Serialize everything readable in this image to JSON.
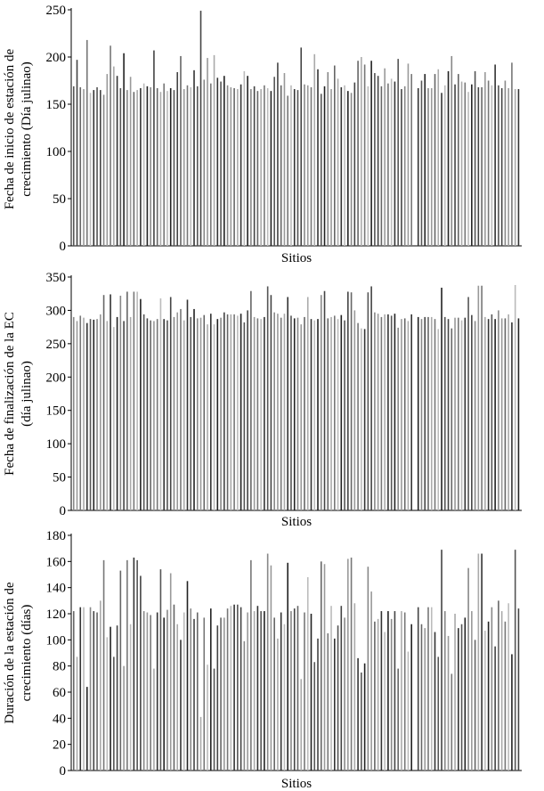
{
  "chart_data": [
    {
      "type": "bar",
      "title": "",
      "xlabel": "Sitios",
      "ylabel": [
        "Fecha de inicio de estación de",
        "crecimiento (Día julinao)"
      ],
      "ylim": [
        0,
        250
      ],
      "yticks": [
        0,
        50,
        100,
        150,
        200,
        250
      ],
      "grid": false,
      "values": [
        169,
        197,
        168,
        166,
        218,
        162,
        165,
        168,
        165,
        160,
        182,
        212,
        190,
        180,
        167,
        204,
        165,
        179,
        163,
        165,
        167,
        172,
        169,
        168,
        207,
        167,
        163,
        172,
        164,
        167,
        165,
        184,
        201,
        166,
        170,
        168,
        186,
        169,
        249,
        176,
        199,
        172,
        202,
        178,
        174,
        180,
        170,
        168,
        167,
        166,
        171,
        185,
        180,
        166,
        169,
        164,
        166,
        170,
        167,
        164,
        179,
        194,
        170,
        183,
        159,
        170,
        166,
        165,
        210,
        171,
        170,
        168,
        203,
        187,
        161,
        169,
        184,
        166,
        191,
        177,
        168,
        170,
        164,
        162,
        173,
        196,
        200,
        192,
        169,
        196,
        183,
        180,
        169,
        188,
        172,
        177,
        174,
        198,
        166,
        169,
        193,
        182,
        null,
        167,
        175,
        182,
        167,
        167,
        182,
        187,
        162,
        170,
        185,
        201,
        171,
        182,
        174,
        173,
        163,
        171,
        185,
        168,
        168,
        184,
        175,
        170,
        192,
        170,
        167,
        175,
        167,
        194,
        166,
        166
      ]
    },
    {
      "type": "bar",
      "title": "",
      "xlabel": "Sitios",
      "ylabel": [
        "Fecha de finalización de la EC",
        "(día julinao)"
      ],
      "ylim": [
        0,
        350
      ],
      "yticks": [
        0,
        50,
        100,
        150,
        200,
        250,
        300,
        350
      ],
      "grid": false,
      "values": [
        290,
        284,
        292,
        289,
        281,
        287,
        286,
        287,
        294,
        323,
        284,
        324,
        275,
        290,
        322,
        284,
        328,
        290,
        328,
        328,
        317,
        294,
        288,
        285,
        284,
        287,
        318,
        287,
        285,
        320,
        290,
        297,
        302,
        285,
        316,
        290,
        302,
        288,
        289,
        293,
        279,
        295,
        279,
        287,
        289,
        297,
        294,
        294,
        294,
        292,
        295,
        282,
        300,
        329,
        290,
        288,
        287,
        290,
        336,
        323,
        297,
        295,
        289,
        295,
        320,
        292,
        288,
        289,
        279,
        290,
        320,
        287,
        285,
        287,
        323,
        329,
        288,
        290,
        292,
        287,
        293,
        285,
        328,
        327,
        300,
        281,
        273,
        272,
        327,
        336,
        297,
        295,
        290,
        294,
        294,
        292,
        295,
        274,
        287,
        288,
        284,
        294,
        null,
        290,
        287,
        290,
        290,
        290,
        287,
        272,
        334,
        290,
        287,
        273,
        289,
        289,
        285,
        289,
        320,
        293,
        284,
        337,
        337,
        290,
        287,
        294,
        287,
        300,
        288,
        288,
        294,
        282,
        338,
        288
      ]
    },
    {
      "type": "bar",
      "title": "",
      "xlabel": "Sitios",
      "ylabel": [
        "Duración de la estación de",
        "crecimiento (días)"
      ],
      "ylim": [
        0,
        180
      ],
      "yticks": [
        0,
        20,
        40,
        60,
        80,
        100,
        120,
        140,
        160,
        180
      ],
      "grid": false,
      "values": [
        122,
        87,
        125,
        125,
        64,
        125,
        122,
        121,
        130,
        161,
        102,
        110,
        87,
        111,
        153,
        80,
        161,
        112,
        163,
        161,
        149,
        122,
        121,
        119,
        78,
        121,
        154,
        117,
        123,
        151,
        127,
        112,
        100,
        121,
        145,
        124,
        116,
        121,
        41,
        117,
        81,
        124,
        78,
        111,
        117,
        117,
        124,
        126,
        127,
        127,
        125,
        99,
        121,
        161,
        122,
        126,
        122,
        122,
        166,
        157,
        117,
        101,
        121,
        112,
        159,
        122,
        124,
        126,
        70,
        121,
        148,
        120,
        83,
        101,
        160,
        158,
        105,
        126,
        101,
        111,
        126,
        117,
        162,
        163,
        128,
        86,
        75,
        82,
        156,
        137,
        114,
        116,
        122,
        106,
        122,
        116,
        122,
        78,
        122,
        121,
        91,
        112,
        null,
        125,
        112,
        109,
        125,
        125,
        106,
        87,
        169,
        122,
        103,
        74,
        120,
        109,
        112,
        117,
        155,
        122,
        100,
        166,
        166,
        107,
        114,
        125,
        95,
        130,
        122,
        114,
        128,
        89,
        169,
        124
      ]
    }
  ]
}
